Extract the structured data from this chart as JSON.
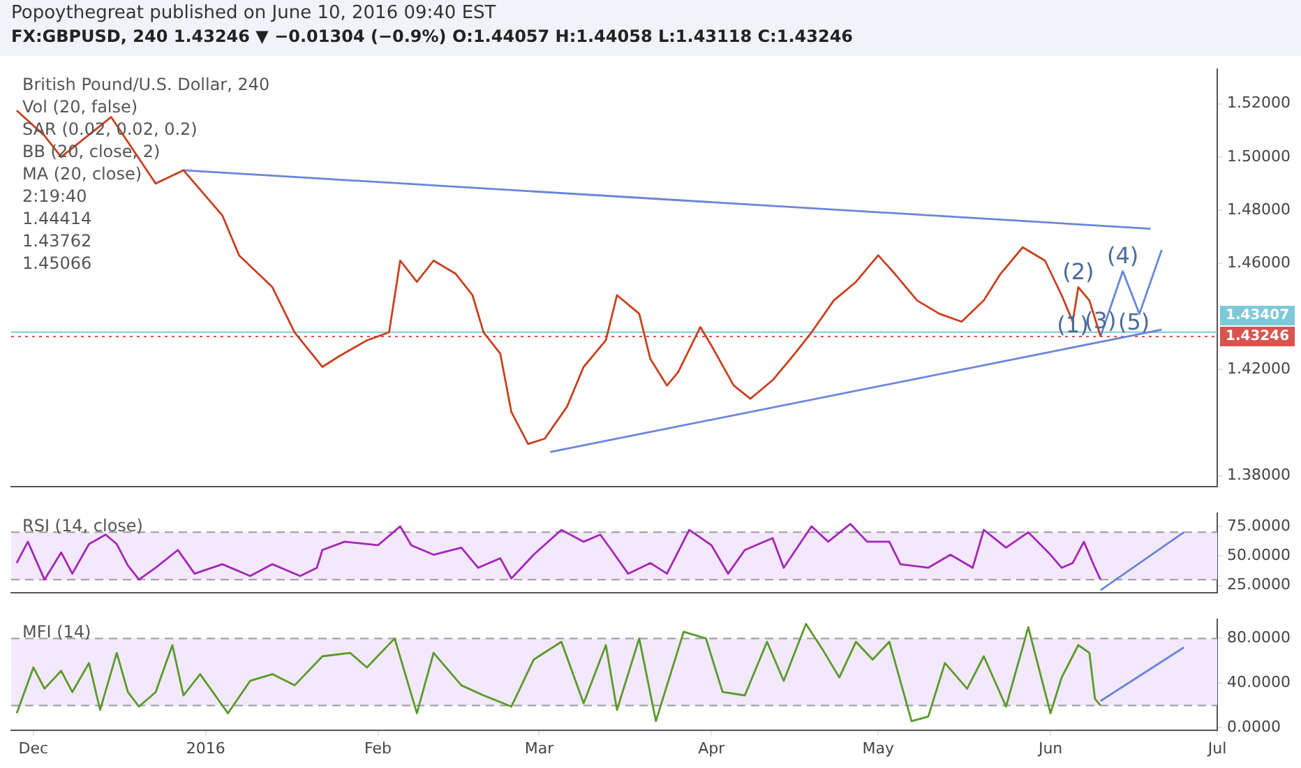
{
  "chart_data": [
    {
      "type": "line",
      "title": "Popoythegreat published on June 10, 2016 09:40 EST",
      "subtitle": "FX:GBPUSD, 240  1.43246 ▼ −0.01304 (−0.9%)  O:1.44057  H:1.44058  L:1.43118  C:1.43246",
      "xlim": [
        "2015-11-27",
        "2016-07-01"
      ],
      "ylim": [
        1.376,
        1.533
      ],
      "yticks": [
        {
          "value": 1.38,
          "label": "1.38000"
        },
        {
          "value": 1.42,
          "label": "1.42000"
        },
        {
          "value": 1.46,
          "label": "1.46000"
        },
        {
          "value": 1.48,
          "label": "1.48000"
        },
        {
          "value": 1.5,
          "label": "1.50000"
        },
        {
          "value": 1.52,
          "label": "1.52000"
        }
      ],
      "tick_labels": "y",
      "grid": false,
      "legend": false,
      "series": [
        {
          "color": "#c8401e",
          "x": [
            "2015-11-28",
            "2015-12-03",
            "2015-12-06",
            "2015-12-15",
            "2015-12-23",
            "2015-12-28",
            "2016-01-04",
            "2016-01-07",
            "2016-01-13",
            "2016-01-17",
            "2016-01-22",
            "2016-01-25",
            "2016-01-30",
            "2016-02-03",
            "2016-02-05",
            "2016-02-08",
            "2016-02-11",
            "2016-02-15",
            "2016-02-18",
            "2016-02-20",
            "2016-02-23",
            "2016-02-25",
            "2016-02-28",
            "2016-03-02",
            "2016-03-06",
            "2016-03-09",
            "2016-03-13",
            "2016-03-15",
            "2016-03-19",
            "2016-03-21",
            "2016-03-24",
            "2016-03-26",
            "2016-03-30",
            "2016-04-01",
            "2016-04-05",
            "2016-04-08",
            "2016-04-12",
            "2016-04-16",
            "2016-04-19",
            "2016-04-23",
            "2016-04-27",
            "2016-05-01",
            "2016-05-04",
            "2016-05-08",
            "2016-05-12",
            "2016-05-16",
            "2016-05-20",
            "2016-05-23",
            "2016-05-27",
            "2016-05-31",
            "2016-06-03",
            "2016-06-05",
            "2016-06-06",
            "2016-06-08",
            "2016-06-10"
          ],
          "values": [
            1.5175,
            1.508,
            1.5,
            1.515,
            1.49,
            1.495,
            1.478,
            1.463,
            1.451,
            1.434,
            1.421,
            1.425,
            1.431,
            1.434,
            1.461,
            1.453,
            1.461,
            1.456,
            1.448,
            1.434,
            1.426,
            1.404,
            1.392,
            1.394,
            1.406,
            1.421,
            1.431,
            1.448,
            1.441,
            1.424,
            1.414,
            1.419,
            1.436,
            1.429,
            1.414,
            1.409,
            1.416,
            1.426,
            1.434,
            1.446,
            1.453,
            1.463,
            1.456,
            1.446,
            1.441,
            1.438,
            1.446,
            1.456,
            1.466,
            1.461,
            1.448,
            1.438,
            1.451,
            1.446,
            1.4325
          ]
        },
        {
          "color": "#6a86d8",
          "x": [
            "2015-12-28",
            "2016-06-19"
          ],
          "values": [
            1.495,
            1.473
          ]
        },
        {
          "color": "#6a86d8",
          "x": [
            "2016-03-03",
            "2016-06-21"
          ],
          "values": [
            1.389,
            1.435
          ]
        },
        {
          "color": "#6a86d8",
          "x": [
            "2016-06-10",
            "2016-06-14",
            "2016-06-17",
            "2016-06-21"
          ],
          "values": [
            1.4325,
            1.457,
            1.441,
            1.465
          ]
        }
      ],
      "ref_lines": [
        {
          "axis": "y",
          "value": 1.43407,
          "label": "1.43407",
          "color": "#7ec8d8",
          "line_style": "solid"
        },
        {
          "axis": "y",
          "value": 1.43246,
          "label": "1.43246",
          "color": "#d9534f",
          "line_style": "dotted"
        }
      ],
      "annotations": [
        "British Pound/U.S. Dollar, 240",
        "Vol (20, false)",
        "SAR (0.02, 0.02, 0.2)",
        "BB (20, close, 2)",
        "MA (20, close)",
        "2:19:40",
        "1.44414",
        "1.43762",
        "1.45066",
        {
          "text": "(1)",
          "x": "2016-06-05",
          "y": 1.431
        },
        {
          "text": "(2)",
          "x": "2016-06-06",
          "y": 1.451
        },
        {
          "text": "(3)",
          "x": "2016-06-10",
          "y": 1.4325
        },
        {
          "text": "(4)",
          "x": "2016-06-14",
          "y": 1.457
        },
        {
          "text": "(5)",
          "x": "2016-06-16",
          "y": 1.432
        }
      ]
    },
    {
      "type": "line",
      "title": "RSI (14, close)",
      "xlim": [
        "2015-11-27",
        "2016-07-01"
      ],
      "ylim": [
        19,
        86
      ],
      "yticks": [
        {
          "value": 25,
          "label": "25.0000"
        },
        {
          "value": 50,
          "label": "50.0000"
        },
        {
          "value": 75,
          "label": "75.0000"
        }
      ],
      "tick_labels": "y",
      "grid": false,
      "legend": false,
      "bands": [
        {
          "axis": "y",
          "from": 30,
          "to": 70,
          "color": "#f3e8fc"
        }
      ],
      "ref_lines": [
        {
          "axis": "y",
          "value": 70,
          "color": "#9a9a9a",
          "line_style": "dashed"
        },
        {
          "axis": "y",
          "value": 30,
          "color": "#9a9a9a",
          "line_style": "dashed"
        }
      ],
      "series": [
        {
          "color": "#a526b8",
          "x": [
            "2015-11-28",
            "2015-11-30",
            "2015-12-03",
            "2015-12-06",
            "2015-12-08",
            "2015-12-11",
            "2015-12-14",
            "2015-12-16",
            "2015-12-18",
            "2015-12-20",
            "2015-12-23",
            "2015-12-27",
            "2015-12-30",
            "2016-01-04",
            "2016-01-09",
            "2016-01-13",
            "2016-01-18",
            "2016-01-21",
            "2016-01-22",
            "2016-01-26",
            "2016-02-01",
            "2016-02-05",
            "2016-02-07",
            "2016-02-11",
            "2016-02-16",
            "2016-02-19",
            "2016-02-23",
            "2016-02-25",
            "2016-02-29",
            "2016-03-05",
            "2016-03-09",
            "2016-03-12",
            "2016-03-14",
            "2016-03-17",
            "2016-03-21",
            "2016-03-24",
            "2016-03-28",
            "2016-04-01",
            "2016-04-04",
            "2016-04-07",
            "2016-04-12",
            "2016-04-14",
            "2016-04-19",
            "2016-04-22",
            "2016-04-26",
            "2016-04-29",
            "2016-05-03",
            "2016-05-05",
            "2016-05-10",
            "2016-05-14",
            "2016-05-18",
            "2016-05-20",
            "2016-05-24",
            "2016-05-28",
            "2016-06-01",
            "2016-06-03",
            "2016-06-05",
            "2016-06-07",
            "2016-06-08",
            "2016-06-09",
            "2016-06-10"
          ],
          "values": [
            44,
            62,
            30,
            53,
            35,
            60,
            68,
            60,
            42,
            30,
            40,
            55,
            35,
            43,
            33,
            43,
            33,
            40,
            55,
            62,
            59,
            75,
            59,
            51,
            57,
            40,
            48,
            31,
            51,
            72,
            62,
            68,
            55,
            35,
            44,
            35,
            72,
            59,
            35,
            55,
            65,
            40,
            75,
            62,
            77,
            62,
            62,
            43,
            40,
            51,
            40,
            72,
            57,
            70,
            51,
            40,
            44,
            62,
            51,
            40,
            30
          ]
        },
        {
          "color": "#6a86d8",
          "x": [
            "2016-06-10",
            "2016-06-25"
          ],
          "values": [
            21,
            70
          ]
        }
      ]
    },
    {
      "type": "line",
      "title": "MFI (14)",
      "xlim": [
        "2015-11-27",
        "2016-07-01"
      ],
      "xticks": [
        {
          "value": "2015-12-01",
          "label": "Dec"
        },
        {
          "value": "2016-01-01",
          "label": "2016"
        },
        {
          "value": "2016-02-01",
          "label": "Feb"
        },
        {
          "value": "2016-03-01",
          "label": "Mar"
        },
        {
          "value": "2016-04-01",
          "label": "Apr"
        },
        {
          "value": "2016-05-01",
          "label": "May"
        },
        {
          "value": "2016-06-01",
          "label": "Jun"
        },
        {
          "value": "2016-07-01",
          "label": "Jul"
        }
      ],
      "ylim": [
        -2,
        97
      ],
      "yticks": [
        {
          "value": 0,
          "label": "0.0000"
        },
        {
          "value": 40,
          "label": "40.0000"
        },
        {
          "value": 80,
          "label": "80.0000"
        }
      ],
      "grid": false,
      "legend": false,
      "bands": [
        {
          "axis": "y",
          "from": 20,
          "to": 80,
          "color": "#f3e8fc"
        }
      ],
      "ref_lines": [
        {
          "axis": "y",
          "value": 80,
          "color": "#9a9a9a",
          "line_style": "dashed"
        },
        {
          "axis": "y",
          "value": 20,
          "color": "#9a9a9a",
          "line_style": "dashed"
        }
      ],
      "series": [
        {
          "color": "#5a9a2a",
          "x": [
            "2015-11-28",
            "2015-12-01",
            "2015-12-03",
            "2015-12-06",
            "2015-12-08",
            "2015-12-11",
            "2015-12-13",
            "2015-12-16",
            "2015-12-18",
            "2015-12-20",
            "2015-12-23",
            "2015-12-26",
            "2015-12-28",
            "2015-12-31",
            "2016-01-05",
            "2016-01-09",
            "2016-01-13",
            "2016-01-17",
            "2016-01-22",
            "2016-01-27",
            "2016-01-30",
            "2016-02-04",
            "2016-02-08",
            "2016-02-11",
            "2016-02-16",
            "2016-02-20",
            "2016-02-25",
            "2016-02-29",
            "2016-03-05",
            "2016-03-09",
            "2016-03-13",
            "2016-03-15",
            "2016-03-19",
            "2016-03-22",
            "2016-03-27",
            "2016-03-31",
            "2016-04-03",
            "2016-04-07",
            "2016-04-11",
            "2016-04-14",
            "2016-04-18",
            "2016-04-21",
            "2016-04-24",
            "2016-04-27",
            "2016-04-30",
            "2016-05-03",
            "2016-05-07",
            "2016-05-10",
            "2016-05-13",
            "2016-05-17",
            "2016-05-20",
            "2016-05-24",
            "2016-05-28",
            "2016-06-01",
            "2016-06-03",
            "2016-06-06",
            "2016-06-08",
            "2016-06-09",
            "2016-06-10"
          ],
          "values": [
            13,
            54,
            35,
            51,
            32,
            58,
            16,
            67,
            32,
            19,
            32,
            74,
            29,
            48,
            13,
            42,
            48,
            38,
            64,
            67,
            54,
            80,
            13,
            67,
            38,
            29,
            19,
            61,
            77,
            22,
            74,
            16,
            80,
            6,
            86,
            80,
            32,
            29,
            77,
            42,
            93,
            70,
            45,
            77,
            61,
            77,
            6,
            10,
            58,
            35,
            64,
            19,
            90,
            13,
            45,
            74,
            67,
            26,
            20
          ]
        },
        {
          "color": "#6a86d8",
          "x": [
            "2016-06-10",
            "2016-06-25"
          ],
          "values": [
            24,
            72
          ]
        }
      ]
    }
  ]
}
